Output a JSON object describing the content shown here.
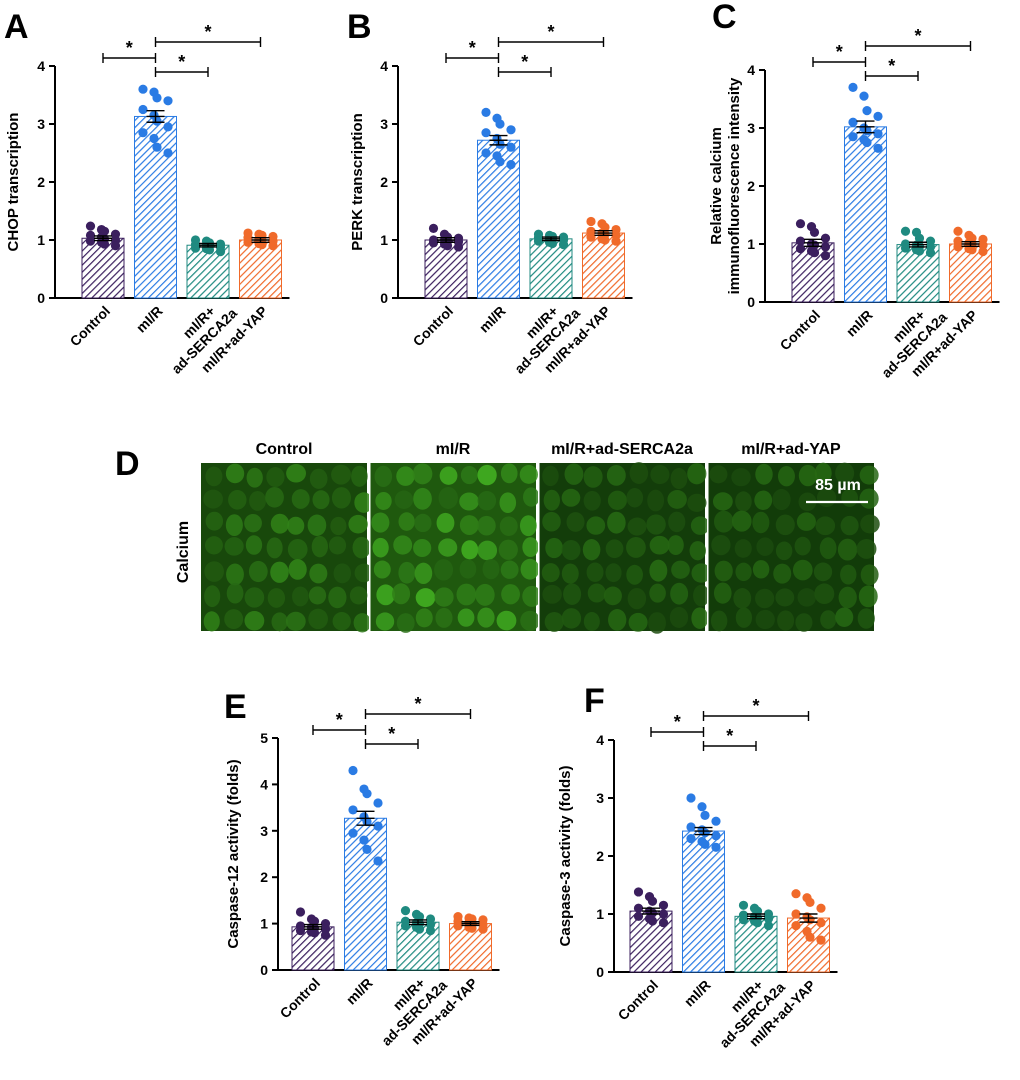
{
  "colors": {
    "control": "#3b1f5e",
    "mir": "#2a7be4",
    "serca": "#1f8a80",
    "yap": "#f06a2a",
    "fluor_bright": "#2f9a1a",
    "fluor_dark": "#0a2606"
  },
  "chart_data": [
    {
      "panel": "A",
      "type": "bar",
      "ylabel": "CHOP transcription",
      "categories": [
        "Control",
        "mI/R",
        "mI/R+\nad-SERCA2a",
        "mI/R+ad-YAP"
      ],
      "values": [
        1.03,
        3.13,
        0.91,
        1.0
      ],
      "errors": [
        0.04,
        0.1,
        0.03,
        0.04
      ],
      "points": [
        [
          1.24,
          1.18,
          1.15,
          1.1,
          1.08,
          1.05,
          1.02,
          1.0,
          0.98,
          0.96,
          0.93,
          0.9
        ],
        [
          3.6,
          3.55,
          3.45,
          3.4,
          3.25,
          3.15,
          3.05,
          2.95,
          2.85,
          2.75,
          2.6,
          2.5
        ],
        [
          1.0,
          0.98,
          0.95,
          0.93,
          0.92,
          0.91,
          0.9,
          0.88,
          0.86,
          0.85,
          0.83,
          0.8
        ],
        [
          1.12,
          1.1,
          1.08,
          1.06,
          1.04,
          1.02,
          1.0,
          0.98,
          0.96,
          0.94,
          0.92,
          0.9
        ]
      ],
      "ylim": [
        0,
        4
      ],
      "yticks": [
        0,
        1,
        2,
        3,
        4
      ],
      "significance": [
        {
          "label": "*"
        },
        {
          "label": "*"
        },
        {
          "label": "*"
        }
      ]
    },
    {
      "panel": "B",
      "type": "bar",
      "ylabel": "PERK transcription",
      "categories": [
        "Control",
        "mI/R",
        "mI/R+\nad-SERCA2a",
        "mI/R+ad-YAP"
      ],
      "values": [
        1.0,
        2.72,
        1.02,
        1.12
      ],
      "errors": [
        0.04,
        0.08,
        0.03,
        0.04
      ],
      "points": [
        [
          1.2,
          1.1,
          1.05,
          1.03,
          1.0,
          1.0,
          0.98,
          0.97,
          0.95,
          0.93,
          0.9,
          0.88
        ],
        [
          3.2,
          3.1,
          3.0,
          2.9,
          2.85,
          2.75,
          2.65,
          2.6,
          2.5,
          2.45,
          2.35,
          2.3
        ],
        [
          1.1,
          1.08,
          1.06,
          1.05,
          1.04,
          1.03,
          1.02,
          1.0,
          0.98,
          0.96,
          0.94,
          0.92
        ],
        [
          1.32,
          1.28,
          1.22,
          1.18,
          1.15,
          1.12,
          1.1,
          1.08,
          1.05,
          1.02,
          1.0,
          0.98
        ]
      ],
      "ylim": [
        0,
        4
      ],
      "yticks": [
        0,
        1,
        2,
        3,
        4
      ],
      "significance": [
        {
          "label": "*"
        },
        {
          "label": "*"
        },
        {
          "label": "*"
        }
      ]
    },
    {
      "panel": "C",
      "type": "bar",
      "ylabel": "Relative calcium\nimmunofluorescence intensity",
      "categories": [
        "Control",
        "mI/R",
        "mI/R+\nad-SERCA2a",
        "mI/R+ad-YAP"
      ],
      "values": [
        1.02,
        3.02,
        0.99,
        1.0
      ],
      "errors": [
        0.06,
        0.1,
        0.04,
        0.04
      ],
      "points": [
        [
          1.35,
          1.3,
          1.2,
          1.1,
          1.05,
          1.0,
          0.98,
          0.95,
          0.92,
          0.88,
          0.85,
          0.8
        ],
        [
          3.7,
          3.55,
          3.3,
          3.2,
          3.1,
          3.0,
          2.95,
          2.9,
          2.85,
          2.8,
          2.75,
          2.65
        ],
        [
          1.22,
          1.2,
          1.1,
          1.05,
          1.0,
          0.98,
          0.96,
          0.95,
          0.93,
          0.9,
          0.88,
          0.85
        ],
        [
          1.22,
          1.15,
          1.1,
          1.08,
          1.05,
          1.02,
          1.0,
          0.98,
          0.95,
          0.92,
          0.9,
          0.87
        ]
      ],
      "ylim": [
        0,
        4
      ],
      "yticks": [
        0,
        1,
        2,
        3,
        4
      ],
      "significance": [
        {
          "label": "*"
        },
        {
          "label": "*"
        },
        {
          "label": "*"
        }
      ]
    },
    {
      "panel": "E",
      "type": "bar",
      "ylabel": "Caspase-12 activity (folds)",
      "categories": [
        "Control",
        "mI/R",
        "mI/R+\nad-SERCA2a",
        "mI/R+ad-YAP"
      ],
      "values": [
        0.93,
        3.27,
        1.03,
        1.0
      ],
      "errors": [
        0.05,
        0.15,
        0.05,
        0.04
      ],
      "points": [
        [
          1.25,
          1.1,
          1.05,
          1.0,
          0.95,
          0.92,
          0.9,
          0.88,
          0.85,
          0.82,
          0.8,
          0.75
        ],
        [
          4.3,
          3.9,
          3.8,
          3.6,
          3.45,
          3.3,
          3.2,
          3.1,
          2.95,
          2.8,
          2.6,
          2.35
        ],
        [
          1.28,
          1.2,
          1.15,
          1.1,
          1.05,
          1.02,
          1.0,
          0.98,
          0.95,
          0.92,
          0.88,
          0.85
        ],
        [
          1.15,
          1.12,
          1.1,
          1.08,
          1.05,
          1.02,
          1.0,
          0.98,
          0.95,
          0.92,
          0.9,
          0.88
        ]
      ],
      "ylim": [
        0,
        5
      ],
      "yticks": [
        0,
        1,
        2,
        3,
        4,
        5
      ],
      "significance": [
        {
          "label": "*"
        },
        {
          "label": "*"
        },
        {
          "label": "*"
        }
      ]
    },
    {
      "panel": "F",
      "type": "bar",
      "ylabel": "Caspase-3 activity (folds)",
      "categories": [
        "Control",
        "mI/R",
        "mI/R+\nad-SERCA2a",
        "mI/R+ad-YAP"
      ],
      "values": [
        1.05,
        2.43,
        0.96,
        0.93
      ],
      "errors": [
        0.05,
        0.06,
        0.04,
        0.07
      ],
      "points": [
        [
          1.38,
          1.3,
          1.22,
          1.15,
          1.1,
          1.05,
          1.02,
          1.0,
          0.96,
          0.92,
          0.88,
          0.85
        ],
        [
          3.0,
          2.85,
          2.7,
          2.6,
          2.5,
          2.45,
          2.4,
          2.35,
          2.3,
          2.25,
          2.2,
          2.15
        ],
        [
          1.15,
          1.1,
          1.05,
          1.0,
          0.98,
          0.96,
          0.94,
          0.92,
          0.9,
          0.88,
          0.85,
          0.8
        ],
        [
          1.35,
          1.28,
          1.2,
          1.1,
          1.0,
          0.95,
          0.9,
          0.85,
          0.8,
          0.7,
          0.6,
          0.55
        ]
      ],
      "ylim": [
        0,
        4
      ],
      "yticks": [
        0,
        1,
        2,
        3,
        4
      ],
      "significance": [
        {
          "label": "*"
        },
        {
          "label": "*"
        },
        {
          "label": "*"
        }
      ]
    }
  ],
  "micrograph": {
    "panel": "D",
    "row_label": "Calcium",
    "columns": [
      "Control",
      "mI/R",
      "mI/R+ad-SERCA2a",
      "mI/R+ad-YAP"
    ],
    "brightness": [
      0.45,
      0.7,
      0.3,
      0.28
    ],
    "scale_bar_label": "85 µm"
  }
}
